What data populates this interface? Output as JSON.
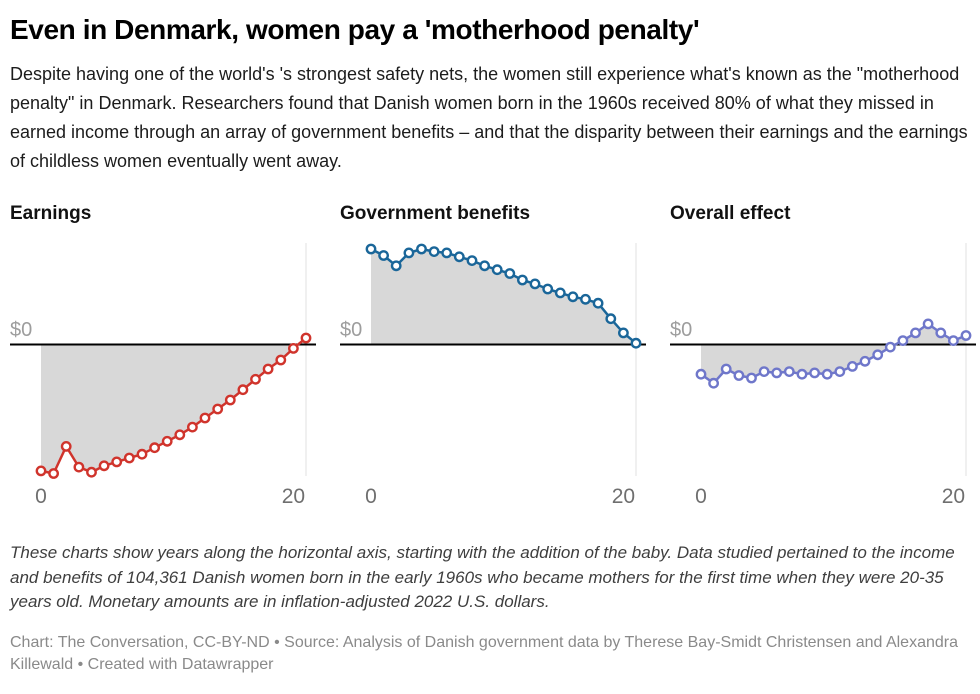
{
  "header": {
    "title": "Even in Denmark, women pay a 'motherhood penalty'",
    "description": "Despite having one of the world's 's strongest safety nets, the women still experience what's known as the \"motherhood penalty\" in Denmark. Researchers found that Danish women born in the 1960s received 80% of what they missed in earned income through an array of government benefits – and that the disparity between their earnings and the earnings of childless women eventually went away."
  },
  "footer": {
    "note": "These charts show years along the horizontal axis, starting with the addition of the baby. Data studied pertained to the income and benefits of 104,361 Danish women born in the early 1960s who became mothers for the first time when they were 20-35 years old. Monetary amounts are in inflation-adjusted 2022 U.S. dollars.",
    "credit": "Chart: The Conversation, CC-BY-ND • Source: Analysis of Danish government data by Therese Bay-Smidt Christensen and Alexandra Killewald • Created with Datawrapper"
  },
  "style": {
    "area_fill": "#d8d8d8",
    "gridline": "#e2e2e2",
    "axis": "#000000",
    "zero_label_color": "#9d9d9d",
    "tick_color": "#6f6f6f",
    "dot_fill": "#ffffff"
  },
  "chart_data": [
    {
      "type": "line",
      "key": "earnings",
      "title": "Earnings",
      "color": "#d0342c",
      "y_zero_label": "$0",
      "x_ticks": [
        0,
        20
      ],
      "x_range": [
        0,
        21
      ],
      "units": "relative dollars (axis unlabeled beyond $0); -100 = deepest earnings loss",
      "x": [
        0,
        1,
        2,
        3,
        4,
        5,
        6,
        7,
        8,
        9,
        10,
        11,
        12,
        13,
        14,
        15,
        16,
        17,
        18,
        19,
        20,
        21
      ],
      "values": [
        -98,
        -100,
        -79,
        -95,
        -99,
        -94,
        -91,
        -88,
        -85,
        -80,
        -75,
        -70,
        -64,
        -57,
        -50,
        -43,
        -35,
        -27,
        -19,
        -12,
        -3,
        5
      ]
    },
    {
      "type": "line",
      "key": "government-benefits",
      "title": "Government benefits",
      "color": "#1a6699",
      "y_zero_label": "$0",
      "x_ticks": [
        0,
        20
      ],
      "x_range": [
        0,
        21
      ],
      "units": "relative dollars (axis unlabeled beyond $0); same scale as earnings panel",
      "x": [
        0,
        1,
        2,
        3,
        4,
        5,
        6,
        7,
        8,
        9,
        10,
        11,
        12,
        13,
        14,
        15,
        16,
        17,
        18,
        19,
        20,
        21
      ],
      "values": [
        74,
        69,
        61,
        71,
        74,
        72,
        71,
        68,
        65,
        61,
        58,
        55,
        50,
        47,
        43,
        40,
        37,
        35,
        32,
        20,
        9,
        1
      ]
    },
    {
      "type": "line",
      "key": "overall-effect",
      "title": "Overall effect",
      "color": "#6f77ca",
      "y_zero_label": "$0",
      "x_ticks": [
        0,
        20
      ],
      "x_range": [
        0,
        21
      ],
      "units": "relative dollars (axis unlabeled beyond $0); same scale as earnings panel",
      "x": [
        0,
        1,
        2,
        3,
        4,
        5,
        6,
        7,
        8,
        9,
        10,
        11,
        12,
        13,
        14,
        15,
        16,
        17,
        18,
        19,
        20,
        21
      ],
      "values": [
        -23,
        -30,
        -19,
        -24,
        -26,
        -21,
        -22,
        -21,
        -23,
        -22,
        -23,
        -21,
        -17,
        -13,
        -8,
        -2,
        3,
        9,
        16,
        9,
        3,
        7
      ]
    }
  ]
}
